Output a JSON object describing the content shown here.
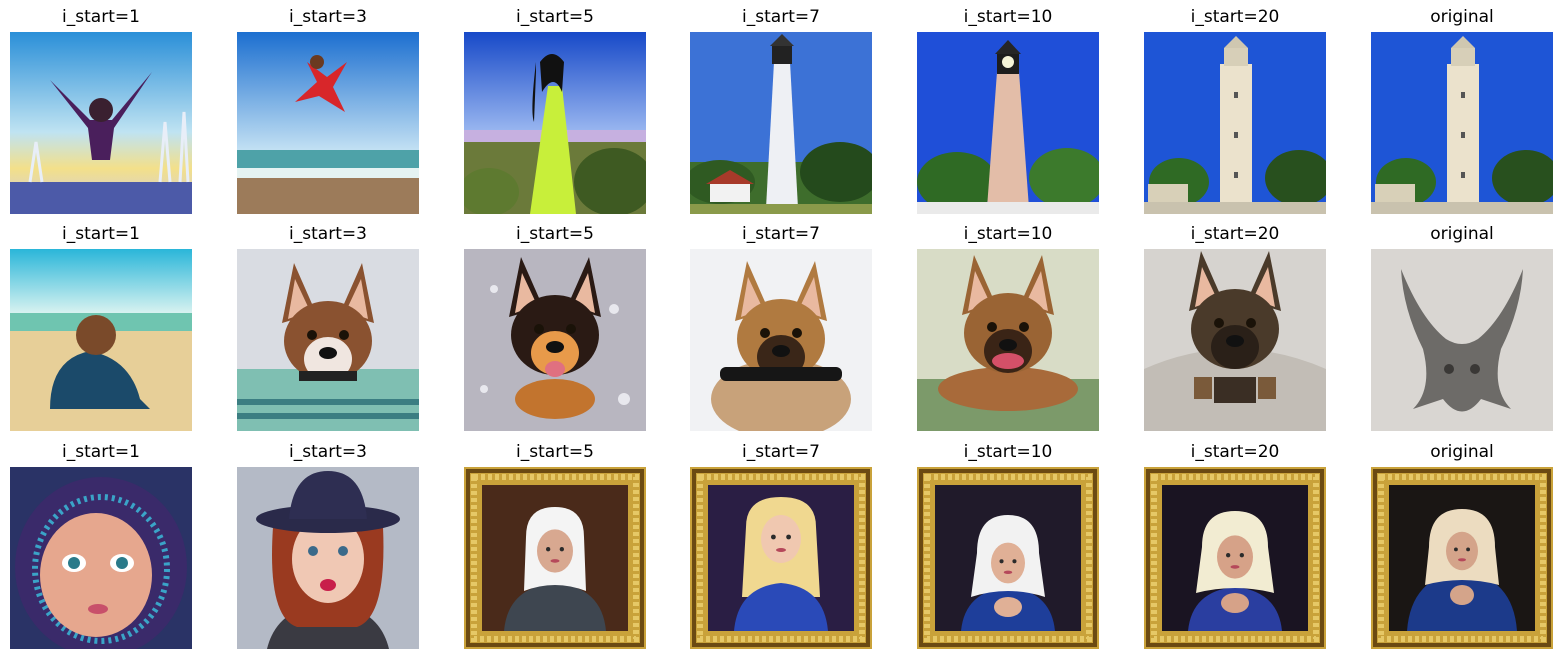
{
  "grid": {
    "columns": [
      "i_start=1",
      "i_start=3",
      "i_start=5",
      "i_start=7",
      "i_start=10",
      "i_start=20",
      "original"
    ],
    "rows": [
      {
        "id": "row-lighthouse",
        "images": [
          {
            "name": "woman-jumping-snow-image",
            "scene": "jump-snow"
          },
          {
            "name": "woman-jumping-beach-image",
            "scene": "jump-beach"
          },
          {
            "name": "woman-green-dress-image",
            "scene": "dress"
          },
          {
            "name": "lighthouse-image",
            "scene": "lighthouse"
          },
          {
            "name": "lighthouse-image",
            "scene": "lighthouse2"
          },
          {
            "name": "tower-image",
            "scene": "tower"
          },
          {
            "name": "tower-image",
            "scene": "tower"
          }
        ]
      },
      {
        "id": "row-dog",
        "images": [
          {
            "name": "child-on-beach-image",
            "scene": "child-beach"
          },
          {
            "name": "dog-in-water-image",
            "scene": "dog-water"
          },
          {
            "name": "dog-on-snow-image",
            "scene": "dog-snow"
          },
          {
            "name": "dog-with-stick-image",
            "scene": "dog-stick"
          },
          {
            "name": "dog-in-water-image",
            "scene": "dog-lying"
          },
          {
            "name": "dog-sitting-image",
            "scene": "dog-sit"
          },
          {
            "name": "gray-sculpture-image",
            "scene": "sculpture"
          }
        ]
      },
      {
        "id": "row-portrait",
        "images": [
          {
            "name": "child-in-hood-image",
            "scene": "baby-hood"
          },
          {
            "name": "woman-in-hat-image",
            "scene": "woman-hat"
          },
          {
            "name": "framed-portrait-image",
            "scene": "frame-man"
          },
          {
            "name": "framed-portrait-image",
            "scene": "frame-blonde"
          },
          {
            "name": "framed-portrait-image",
            "scene": "frame-veil"
          },
          {
            "name": "framed-portrait-image",
            "scene": "frame-veil2"
          },
          {
            "name": "framed-portrait-image",
            "scene": "frame-madonna"
          }
        ]
      }
    ]
  }
}
